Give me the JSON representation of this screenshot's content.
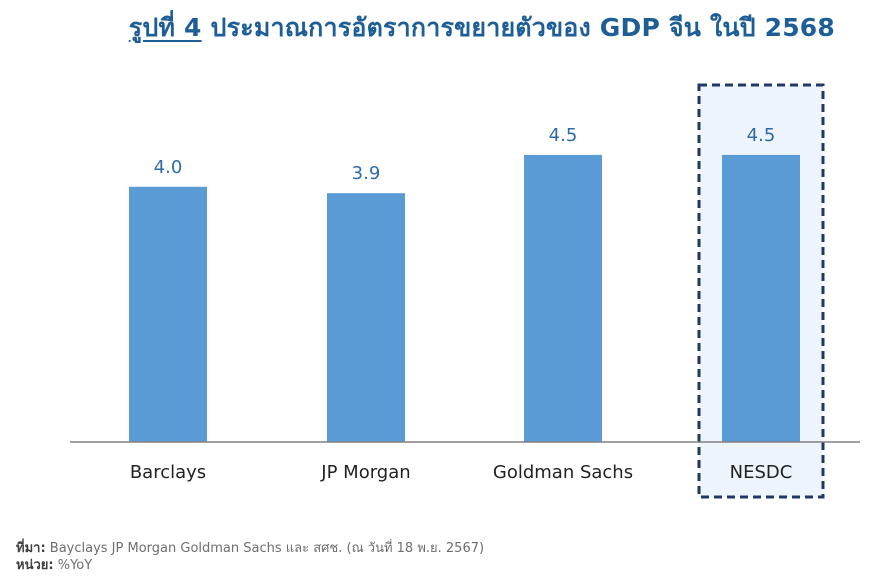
{
  "title": {
    "figure_no": "รูปที่ 4",
    "text": "ประมาณการอัตราการขยายตัวของ GDP จีน ในปี 2568"
  },
  "footer": {
    "source_label": "ที่มา:",
    "source_text": "Bayclays JP Morgan Goldman Sachs  และ สศช. (ณ วันที่ 18 พ.ย. 2567)",
    "unit_label": "หน่วย:",
    "unit_text": "%YoY"
  },
  "colors": {
    "bar": "#5b9bd5",
    "value_label": "#2e6ca4",
    "highlight_border": "#1f3864",
    "highlight_fill": "#eef4fb",
    "axis": "#808080",
    "title": "#1e5e96"
  },
  "chart_data": {
    "type": "bar",
    "title": "ประมาณการอัตราการขยายตัวของ GDP จีน ในปี 2568",
    "xlabel": "",
    "ylabel": "",
    "categories": [
      "Barclays",
      "JP Morgan",
      "Goldman Sachs",
      "NESDC"
    ],
    "values": [
      4.0,
      3.9,
      4.5,
      4.5
    ],
    "value_labels": [
      "4.0",
      "3.9",
      "4.5",
      "4.5"
    ],
    "highlighted_category": "NESDC",
    "ylim": [
      0,
      5.5
    ],
    "grid": false,
    "legend": "none"
  }
}
